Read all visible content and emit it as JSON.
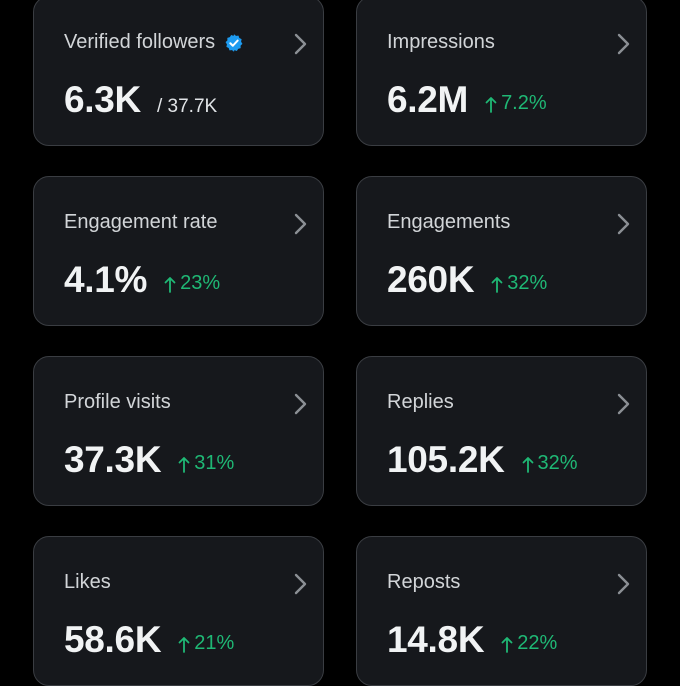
{
  "colors": {
    "background": "#000000",
    "card_background": "#16181c",
    "card_border": "#3a3d42",
    "label": "#d2d5d8",
    "value": "#f1f3f4",
    "positive_change": "#1fb875",
    "verified_badge": "#1d9bf0"
  },
  "cards": [
    {
      "label": "Verified followers",
      "value": "6.3K",
      "total": "/ 37.7K",
      "verified_icon": "verified-badge-icon"
    },
    {
      "label": "Impressions",
      "value": "6.2M",
      "change": "7.2%"
    },
    {
      "label": "Engagement rate",
      "value": "4.1%",
      "change": "23%"
    },
    {
      "label": "Engagements",
      "value": "260K",
      "change": "32%"
    },
    {
      "label": "Profile visits",
      "value": "37.3K",
      "change": "31%"
    },
    {
      "label": "Replies",
      "value": "105.2K",
      "change": "32%"
    },
    {
      "label": "Likes",
      "value": "58.6K",
      "change": "21%"
    },
    {
      "label": "Reposts",
      "value": "14.8K",
      "change": "22%"
    }
  ]
}
